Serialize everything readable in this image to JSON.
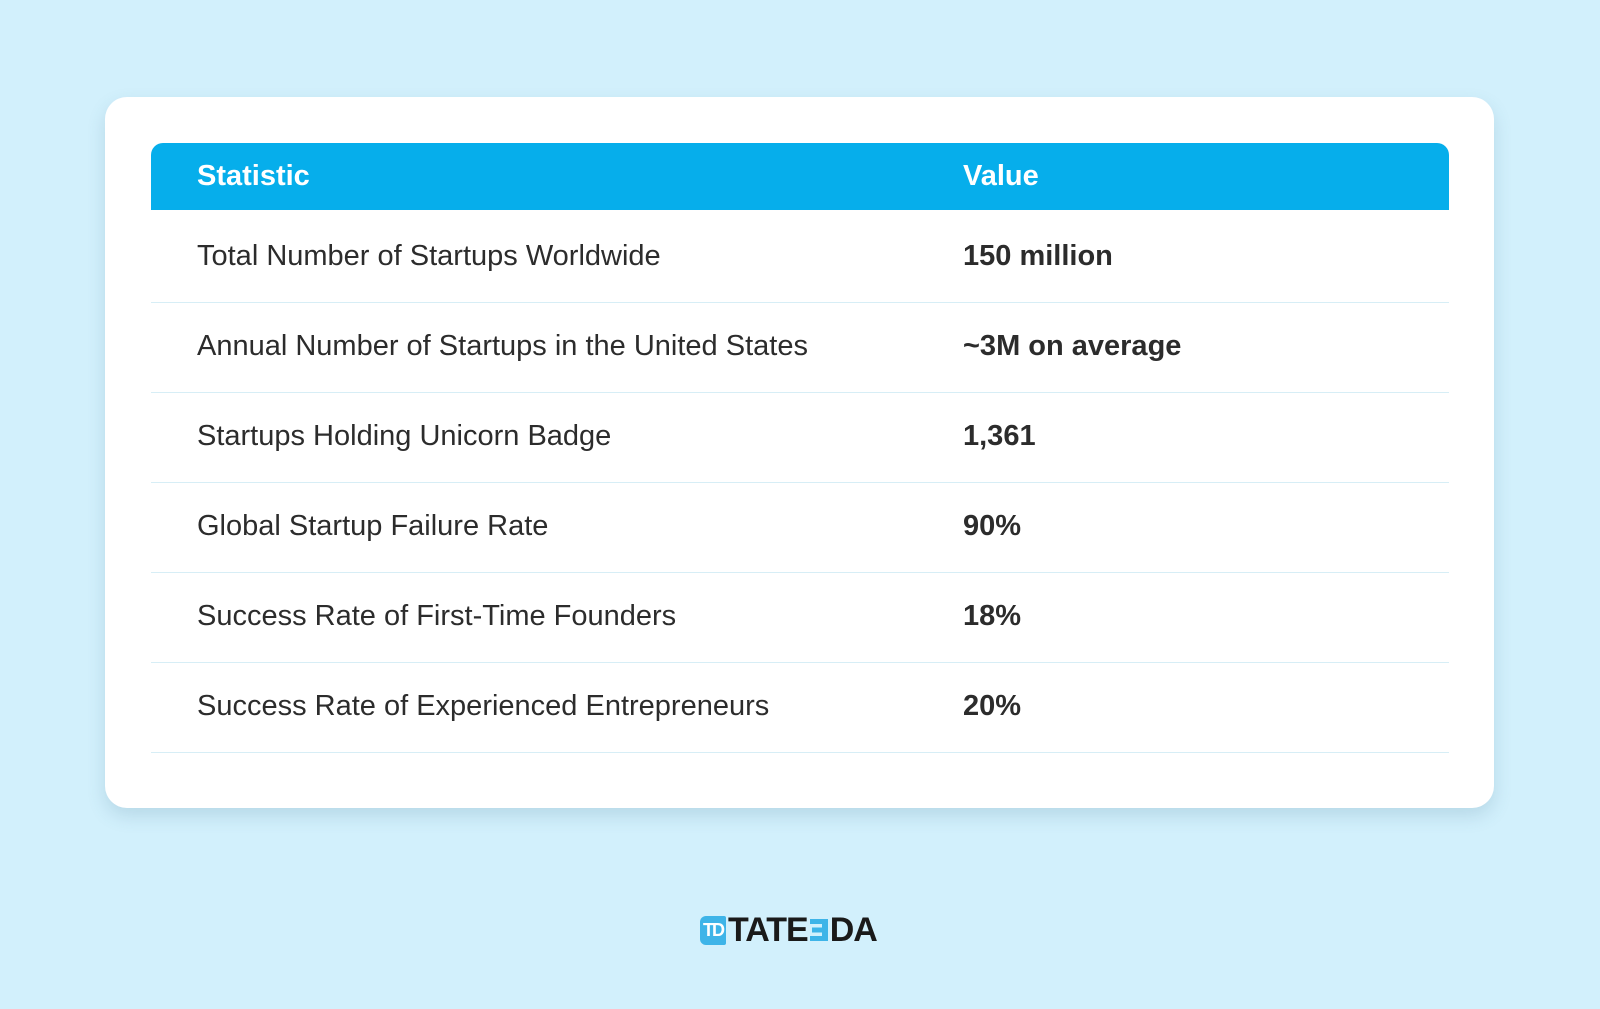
{
  "table": {
    "columns": [
      "Statistic",
      "Value"
    ],
    "rows": [
      [
        "Total Number of Startups Worldwide",
        "150 million"
      ],
      [
        "Annual Number of Startups in the United States",
        "~3M on average"
      ],
      [
        "Startups Holding Unicorn Badge",
        "1,361"
      ],
      [
        "Global Startup Failure Rate",
        "90%"
      ],
      [
        "Success Rate of First-Time Founders",
        "18%"
      ],
      [
        "Success Rate of Experienced Entrepreneurs",
        "20%"
      ]
    ]
  },
  "logo": {
    "badge": "TD",
    "name_left": "TATE",
    "name_right": "DA"
  }
}
